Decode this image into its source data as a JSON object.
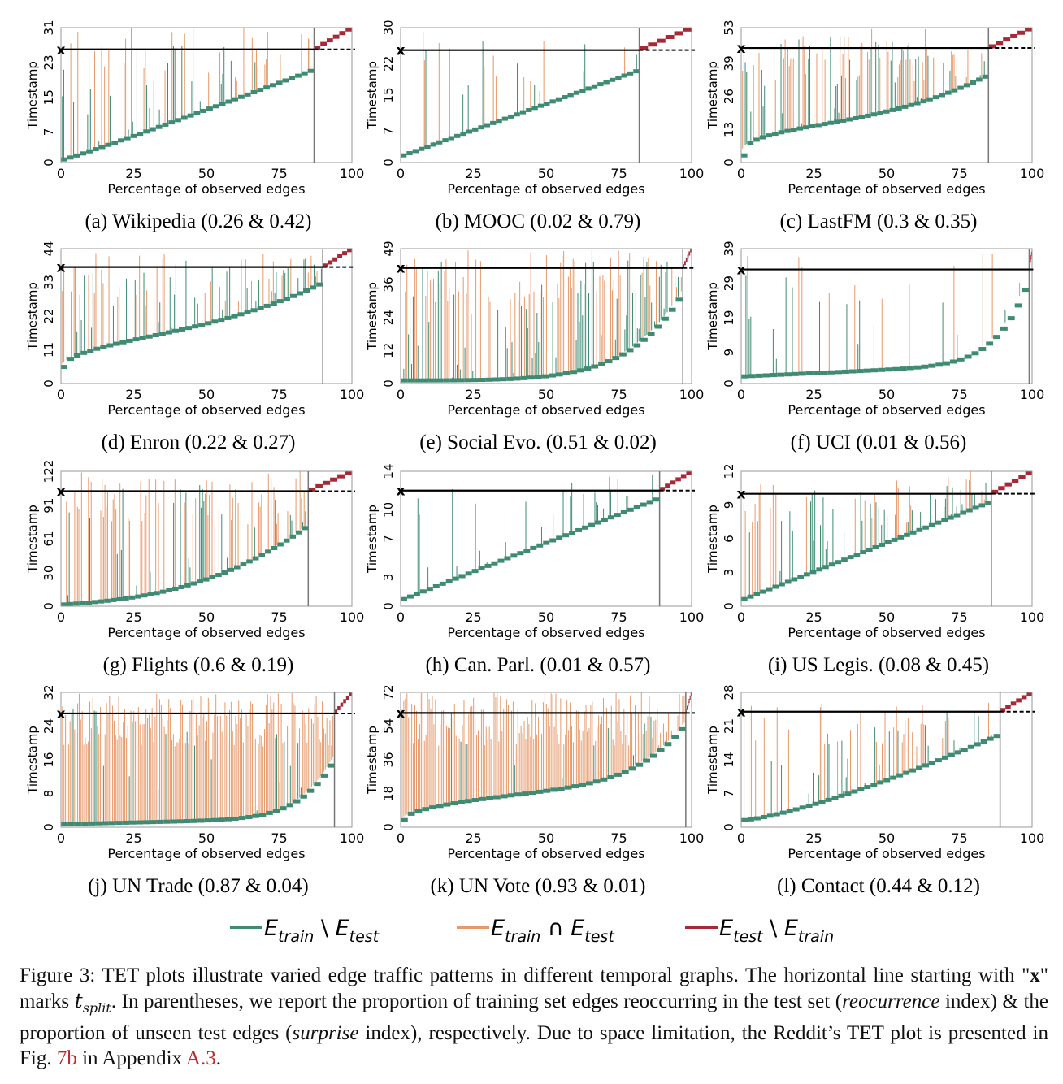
{
  "colors": {
    "train_only": "#3f8a72",
    "train_and_test": "#e69a6b",
    "test_only": "#a52a36",
    "grid_line": "#777777",
    "caption_ref": "#c0282a"
  },
  "axis_common": {
    "xlabel": "Percentage of observed edges",
    "ylabel": "Timestamp",
    "xticks": [
      "0",
      "25",
      "50",
      "75",
      "100"
    ],
    "split_marker": "x"
  },
  "panels": [
    {
      "id": "a",
      "label": "(a) Wikipedia (0.26 & 0.42)",
      "yticks": [
        "0",
        "7",
        "15",
        "23",
        "31"
      ],
      "ymax": 31,
      "t_split": 26,
      "split_pct": 87
    },
    {
      "id": "b",
      "label": "(b) MOOC (0.02 & 0.79)",
      "yticks": [
        "0",
        "7",
        "15",
        "22",
        "30"
      ],
      "ymax": 30,
      "t_split": 25,
      "split_pct": 82
    },
    {
      "id": "c",
      "label": "(c) LastFM (0.3 & 0.35)",
      "yticks": [
        "0",
        "13",
        "26",
        "39",
        "53"
      ],
      "ymax": 53,
      "t_split": 45,
      "split_pct": 85
    },
    {
      "id": "d",
      "label": "(d) Enron (0.22 & 0.27)",
      "yticks": [
        "0",
        "11",
        "22",
        "33",
        "44"
      ],
      "ymax": 44,
      "t_split": 38,
      "split_pct": 90
    },
    {
      "id": "e",
      "label": "(e) Social Evo. (0.51 & 0.02)",
      "yticks": [
        "0",
        "12",
        "24",
        "36",
        "49"
      ],
      "ymax": 49,
      "t_split": 42,
      "split_pct": 97
    },
    {
      "id": "f",
      "label": "(f) UCI (0.01 & 0.56)",
      "yticks": [
        "0",
        "9",
        "19",
        "29",
        "39"
      ],
      "ymax": 39,
      "t_split": 33,
      "split_pct": 99
    },
    {
      "id": "g",
      "label": "(g) Flights (0.6 & 0.19)",
      "yticks": [
        "0",
        "30",
        "61",
        "91",
        "122"
      ],
      "ymax": 122,
      "t_split": 104,
      "split_pct": 85
    },
    {
      "id": "h",
      "label": "(h) Can. Parl. (0.01 & 0.57)",
      "yticks": [
        "0",
        "3",
        "7",
        "10",
        "14"
      ],
      "ymax": 14,
      "t_split": 12,
      "split_pct": 89
    },
    {
      "id": "i",
      "label": "(i) US Legis. (0.08 & 0.45)",
      "yticks": [
        "0",
        "3",
        "6",
        "9",
        "12"
      ],
      "ymax": 12,
      "t_split": 10,
      "split_pct": 86
    },
    {
      "id": "j",
      "label": "(j) UN Trade (0.87 & 0.04)",
      "yticks": [
        "0",
        "8",
        "16",
        "24",
        "32"
      ],
      "ymax": 32,
      "t_split": 27,
      "split_pct": 94
    },
    {
      "id": "k",
      "label": "(k) UN Vote (0.93 & 0.01)",
      "yticks": [
        "0",
        "18",
        "36",
        "54",
        "72"
      ],
      "ymax": 72,
      "t_split": 61,
      "split_pct": 98
    },
    {
      "id": "l",
      "label": "(l) Contact (0.44 & 0.12)",
      "yticks": [
        "0",
        "7",
        "14",
        "21",
        "28"
      ],
      "ymax": 28,
      "t_split": 24,
      "split_pct": 89
    }
  ],
  "legend": [
    {
      "key": "train_only",
      "main": "E",
      "sub": "train",
      "op": " \\ ",
      "main2": "E",
      "sub2": "test"
    },
    {
      "key": "train_and_test",
      "main": "E",
      "sub": "train",
      "op": " ∩ ",
      "main2": "E",
      "sub2": "test"
    },
    {
      "key": "test_only",
      "main": "E",
      "sub": "test",
      "op": " \\ ",
      "main2": "E",
      "sub2": "train"
    }
  ],
  "caption": {
    "prefix": "Figure 3: TET plots illustrate varied edge traffic patterns in different temporal graphs. The horizontal line starting with \"",
    "x_bold": "x",
    "part2": "\" marks ",
    "t_split": "t",
    "t_split_sub": "split",
    "part3": ". In parentheses, we report the proportion of training set edges reoccurring in the test set (",
    "italic1": "reocurrence",
    "part4": " index) & the proportion of unseen test edges (",
    "italic2": "surprise",
    "part5": " index), respectively. Due to space limitation, the Reddit’s TET plot is presented in Fig. ",
    "ref1": "7b",
    "part6": " in Appendix ",
    "ref2": "A.3",
    "part7": "."
  }
}
